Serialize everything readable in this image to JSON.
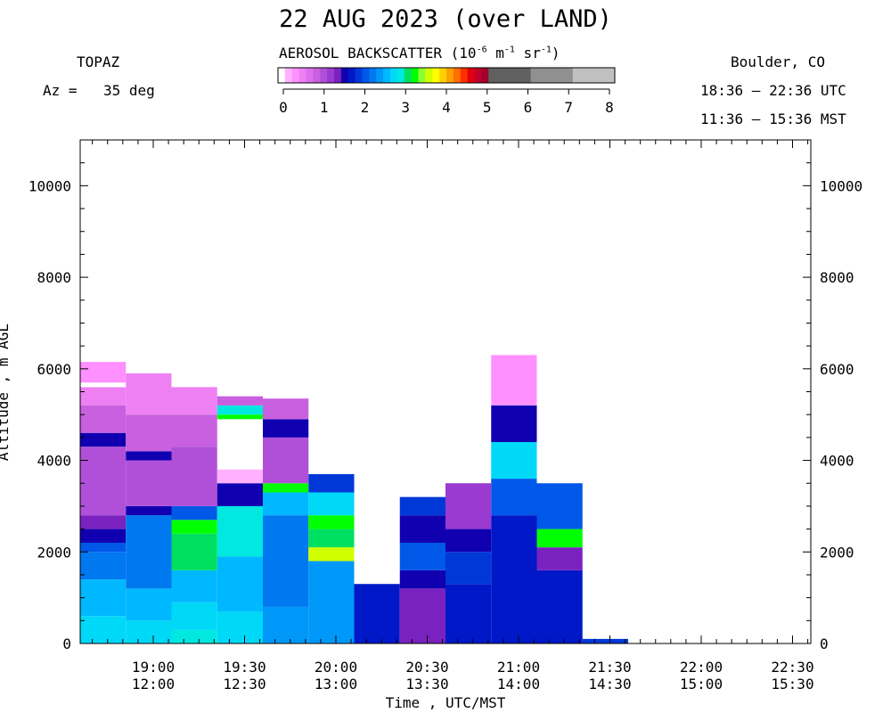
{
  "header": {
    "title": "22 AUG 2023 (over LAND)",
    "station": "TOPAZ",
    "az_label": "Az =",
    "az_value": "35 deg",
    "location": "Boulder, CO",
    "utc_range": "18:36 – 22:36 UTC",
    "mst_range": "11:36 – 15:36 MST"
  },
  "colorbar": {
    "title_prefix": "AEROSOL BACKSCATTER (10",
    "exp1": "-6",
    "unit_m": " m",
    "exp2": "-1",
    "unit_sr": " sr",
    "exp3": "-1",
    "title_suffix": ")",
    "ticks": [
      "0",
      "1",
      "2",
      "3",
      "4",
      "5",
      "6",
      "7",
      "8"
    ],
    "colors": [
      "#ffffff",
      "#ffb0ff",
      "#ff90ff",
      "#ee80f4",
      "#dd70ee",
      "#c860e0",
      "#b050d8",
      "#9a3ad0",
      "#7a22c0",
      "#1000b0",
      "#0018c8",
      "#0038d8",
      "#0058e8",
      "#0078f0",
      "#0098f8",
      "#00b8ff",
      "#00d8f8",
      "#00e8e0",
      "#00e060",
      "#00ff00",
      "#90ff30",
      "#d0ff00",
      "#ffff00",
      "#ffd000",
      "#ffa000",
      "#ff7000",
      "#ff3000",
      "#e00010",
      "#c00028",
      "#a00030",
      "#606060",
      "#909090",
      "#c0c0c0"
    ],
    "fine_segments": 30,
    "coarse_segments": 3
  },
  "chart_data": {
    "type": "heatmap",
    "title": "22 AUG 2023 (over LAND)",
    "xlabel": "Time , UTC/MST",
    "ylabel": "Altitude , m AGL",
    "x_ticks": [
      {
        "utc": "19:00",
        "mst": "12:00"
      },
      {
        "utc": "19:30",
        "mst": "12:30"
      },
      {
        "utc": "20:00",
        "mst": "13:00"
      },
      {
        "utc": "20:30",
        "mst": "13:30"
      },
      {
        "utc": "21:00",
        "mst": "14:00"
      },
      {
        "utc": "21:30",
        "mst": "14:30"
      },
      {
        "utc": "22:00",
        "mst": "15:00"
      },
      {
        "utc": "22:30",
        "mst": "15:30"
      }
    ],
    "x_start_utc": "18:36",
    "x_end_utc": "22:36",
    "y_ticks": [
      0,
      2000,
      4000,
      6000,
      8000,
      10000
    ],
    "ylim": [
      0,
      11000
    ],
    "colorbar_range": [
      0,
      8
    ],
    "colorbar_unit": "10^-6 m^-1 sr^-1",
    "columns": [
      {
        "start_utc": "18:36",
        "end_utc": "18:51",
        "top_m": 6150,
        "layers": [
          {
            "from": 0,
            "to": 600,
            "color": "#00d8f8"
          },
          {
            "from": 600,
            "to": 1400,
            "color": "#00b8ff"
          },
          {
            "from": 1400,
            "to": 2000,
            "color": "#0078f0"
          },
          {
            "from": 2000,
            "to": 2200,
            "color": "#0058e8"
          },
          {
            "from": 2200,
            "to": 2500,
            "color": "#1000b0"
          },
          {
            "from": 2500,
            "to": 2800,
            "color": "#7a22c0"
          },
          {
            "from": 2800,
            "to": 4300,
            "color": "#b050d8"
          },
          {
            "from": 4300,
            "to": 4600,
            "color": "#1000b0"
          },
          {
            "from": 4600,
            "to": 5200,
            "color": "#c860e0"
          },
          {
            "from": 5200,
            "to": 5600,
            "color": "#ee80f4"
          },
          {
            "from": 5600,
            "to": 5700,
            "color": "#ffffff"
          },
          {
            "from": 5700,
            "to": 6150,
            "color": "#ff90ff"
          }
        ]
      },
      {
        "start_utc": "18:51",
        "end_utc": "19:06",
        "top_m": 5900,
        "layers": [
          {
            "from": 0,
            "to": 500,
            "color": "#00d8f8"
          },
          {
            "from": 500,
            "to": 1200,
            "color": "#00b8ff"
          },
          {
            "from": 1200,
            "to": 2800,
            "color": "#0078f0"
          },
          {
            "from": 2800,
            "to": 3000,
            "color": "#1000b0"
          },
          {
            "from": 3000,
            "to": 4000,
            "color": "#b050d8"
          },
          {
            "from": 4000,
            "to": 4200,
            "color": "#1000b0"
          },
          {
            "from": 4200,
            "to": 5000,
            "color": "#c860e0"
          },
          {
            "from": 5000,
            "to": 5900,
            "color": "#ee80f4"
          }
        ]
      },
      {
        "start_utc": "19:06",
        "end_utc": "19:21",
        "top_m": 5600,
        "layers": [
          {
            "from": 0,
            "to": 300,
            "color": "#00e8e0"
          },
          {
            "from": 300,
            "to": 900,
            "color": "#00d8f8"
          },
          {
            "from": 900,
            "to": 1600,
            "color": "#00b8ff"
          },
          {
            "from": 1600,
            "to": 2400,
            "color": "#00e060"
          },
          {
            "from": 2400,
            "to": 2700,
            "color": "#00ff00"
          },
          {
            "from": 2700,
            "to": 3000,
            "color": "#0058e8"
          },
          {
            "from": 3000,
            "to": 4300,
            "color": "#b050d8"
          },
          {
            "from": 4300,
            "to": 5000,
            "color": "#c860e0"
          },
          {
            "from": 5000,
            "to": 5600,
            "color": "#ee80f4"
          }
        ]
      },
      {
        "start_utc": "19:21",
        "end_utc": "19:36",
        "top_m": 5400,
        "layers": [
          {
            "from": 0,
            "to": 700,
            "color": "#00d8f8"
          },
          {
            "from": 700,
            "to": 1900,
            "color": "#00b8ff"
          },
          {
            "from": 1900,
            "to": 3000,
            "color": "#00e8e0"
          },
          {
            "from": 3000,
            "to": 3500,
            "color": "#1000b0"
          },
          {
            "from": 3500,
            "to": 3800,
            "color": "#ffb0ff"
          },
          {
            "from": 4900,
            "to": 5000,
            "color": "#00ff00"
          },
          {
            "from": 5000,
            "to": 5200,
            "color": "#00e8e0"
          },
          {
            "from": 5200,
            "to": 5400,
            "color": "#c860e0"
          }
        ]
      },
      {
        "start_utc": "19:36",
        "end_utc": "19:51",
        "top_m": 5350,
        "layers": [
          {
            "from": 0,
            "to": 800,
            "color": "#0098f8"
          },
          {
            "from": 800,
            "to": 2800,
            "color": "#0078f0"
          },
          {
            "from": 2800,
            "to": 3300,
            "color": "#00b8ff"
          },
          {
            "from": 3300,
            "to": 3500,
            "color": "#00ff00"
          },
          {
            "from": 3500,
            "to": 4500,
            "color": "#b050d8"
          },
          {
            "from": 4500,
            "to": 4900,
            "color": "#1000b0"
          },
          {
            "from": 4900,
            "to": 5350,
            "color": "#c860e0"
          }
        ]
      },
      {
        "start_utc": "19:51",
        "end_utc": "20:06",
        "top_m": 3700,
        "layers": [
          {
            "from": 0,
            "to": 1800,
            "color": "#0098f8"
          },
          {
            "from": 1800,
            "to": 2100,
            "color": "#d0ff00"
          },
          {
            "from": 2100,
            "to": 2500,
            "color": "#00e060"
          },
          {
            "from": 2500,
            "to": 2800,
            "color": "#00ff00"
          },
          {
            "from": 2800,
            "to": 3300,
            "color": "#00d8f8"
          },
          {
            "from": 3300,
            "to": 3700,
            "color": "#0038d8"
          }
        ]
      },
      {
        "start_utc": "20:06",
        "end_utc": "20:21",
        "top_m": 1300,
        "layers": [
          {
            "from": 0,
            "to": 1300,
            "color": "#0018c8"
          }
        ]
      },
      {
        "start_utc": "20:21",
        "end_utc": "20:36",
        "top_m": 3200,
        "layers": [
          {
            "from": 0,
            "to": 1200,
            "color": "#7a22c0"
          },
          {
            "from": 1200,
            "to": 1600,
            "color": "#1000b0"
          },
          {
            "from": 1600,
            "to": 2200,
            "color": "#0058e8"
          },
          {
            "from": 2200,
            "to": 2800,
            "color": "#1000b0"
          },
          {
            "from": 2800,
            "to": 3200,
            "color": "#0038d8"
          }
        ]
      },
      {
        "start_utc": "20:36",
        "end_utc": "20:51",
        "top_m": 3500,
        "layers": [
          {
            "from": 0,
            "to": 1300,
            "color": "#0018c8"
          },
          {
            "from": 1300,
            "to": 2000,
            "color": "#0038d8"
          },
          {
            "from": 2000,
            "to": 2500,
            "color": "#1000b0"
          },
          {
            "from": 2500,
            "to": 3500,
            "color": "#9a3ad0"
          }
        ]
      },
      {
        "start_utc": "20:51",
        "end_utc": "21:06",
        "top_m": 6300,
        "layers": [
          {
            "from": 0,
            "to": 2800,
            "color": "#0018c8"
          },
          {
            "from": 2800,
            "to": 3600,
            "color": "#0058e8"
          },
          {
            "from": 3600,
            "to": 4400,
            "color": "#00d8f8"
          },
          {
            "from": 4400,
            "to": 5200,
            "color": "#1000b0"
          },
          {
            "from": 5200,
            "to": 6300,
            "color": "#ff90ff"
          }
        ]
      },
      {
        "start_utc": "21:06",
        "end_utc": "21:21",
        "top_m": 3500,
        "layers": [
          {
            "from": 0,
            "to": 1600,
            "color": "#0018c8"
          },
          {
            "from": 1600,
            "to": 2100,
            "color": "#7a22c0"
          },
          {
            "from": 2100,
            "to": 2500,
            "color": "#00ff00"
          },
          {
            "from": 2500,
            "to": 3500,
            "color": "#0058e8"
          }
        ]
      },
      {
        "start_utc": "21:21",
        "end_utc": "21:36",
        "top_m": 100,
        "layers": [
          {
            "from": 0,
            "to": 100,
            "color": "#0038d8"
          }
        ]
      }
    ]
  }
}
